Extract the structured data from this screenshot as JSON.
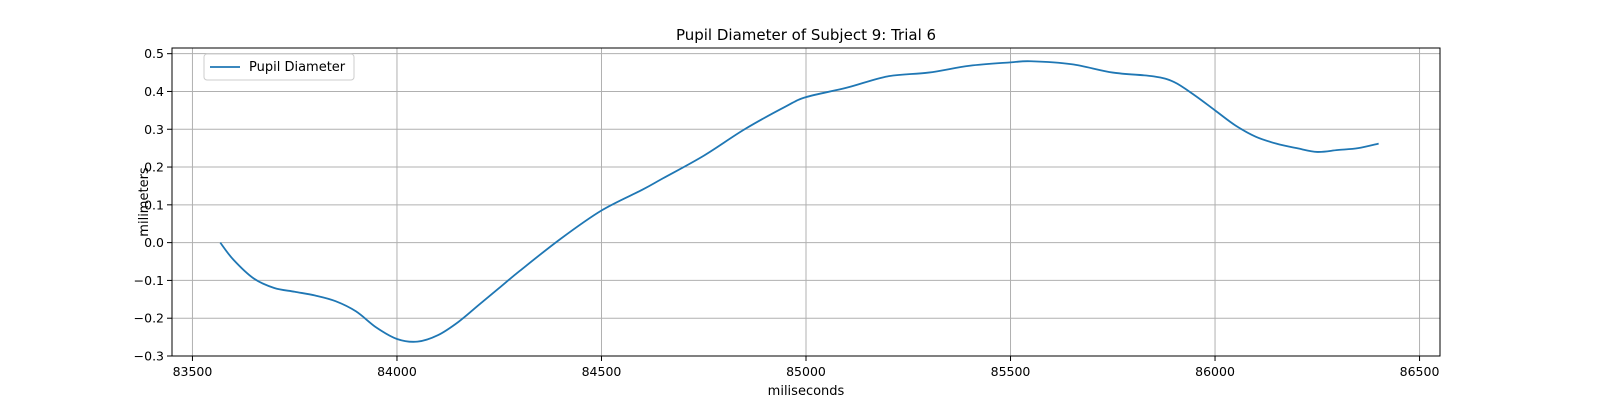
{
  "chart_data": {
    "type": "line",
    "title": "Pupil Diameter of Subject 9: Trial 6",
    "xlabel": "miliseconds",
    "ylabel": "milimeters",
    "xlim": [
      83450,
      86550
    ],
    "ylim": [
      -0.3,
      0.515
    ],
    "xticks": [
      83500,
      84000,
      84500,
      85000,
      85500,
      86000,
      86500
    ],
    "yticks": [
      -0.3,
      -0.2,
      -0.1,
      0.0,
      0.1,
      0.2,
      0.3,
      0.4,
      0.5
    ],
    "xtick_labels": [
      "83500",
      "84000",
      "84500",
      "85000",
      "85500",
      "86000",
      "86500"
    ],
    "ytick_labels": [
      "−0.3",
      "−0.2",
      "−0.1",
      "0.0",
      "0.1",
      "0.2",
      "0.3",
      "0.4",
      "0.5"
    ],
    "grid": true,
    "legend_position": "upper-left",
    "series": [
      {
        "name": "Pupil Diameter",
        "color": "#1f77b4",
        "x": [
          83568,
          83600,
          83650,
          83700,
          83750,
          83800,
          83850,
          83900,
          83950,
          84000,
          84050,
          84100,
          84150,
          84200,
          84250,
          84300,
          84400,
          84500,
          84600,
          84650,
          84750,
          84850,
          84950,
          85000,
          85100,
          85200,
          85300,
          85400,
          85500,
          85550,
          85650,
          85750,
          85850,
          85900,
          85950,
          86000,
          86050,
          86100,
          86150,
          86200,
          86250,
          86300,
          86350,
          86400
        ],
        "y": [
          0.0,
          -0.045,
          -0.095,
          -0.12,
          -0.13,
          -0.14,
          -0.155,
          -0.182,
          -0.225,
          -0.255,
          -0.262,
          -0.245,
          -0.21,
          -0.165,
          -0.12,
          -0.075,
          0.01,
          0.085,
          0.14,
          0.17,
          0.23,
          0.3,
          0.36,
          0.385,
          0.41,
          0.44,
          0.45,
          0.468,
          0.477,
          0.48,
          0.472,
          0.45,
          0.44,
          0.425,
          0.39,
          0.35,
          0.31,
          0.28,
          0.262,
          0.25,
          0.24,
          0.245,
          0.25,
          0.262
        ]
      }
    ]
  }
}
